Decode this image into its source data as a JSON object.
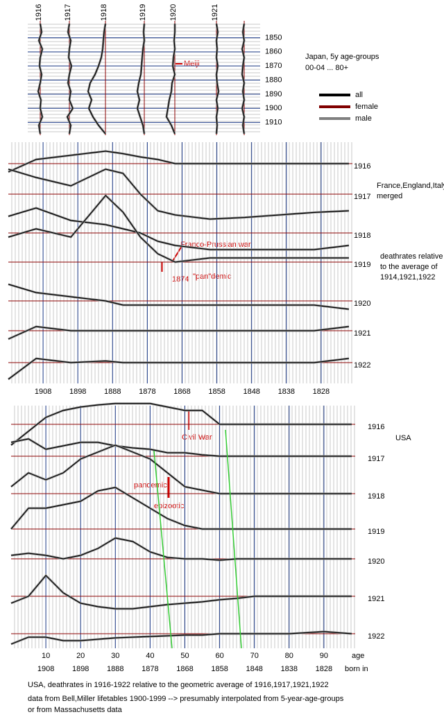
{
  "chart_data": [
    {
      "type": "line",
      "title": "Japan, 5y age-groups",
      "subtitle": "00-04 ... 80+",
      "y": [
        1840,
        1846,
        1852,
        1858,
        1864,
        1870,
        1876,
        1882,
        1888,
        1894,
        1900,
        1906,
        1912,
        1918
      ],
      "ylim": [
        1838,
        1919
      ],
      "yticks": [
        1850,
        1860,
        1870,
        1880,
        1890,
        1900,
        1910
      ],
      "columns": [
        {
          "name": "1916",
          "values": [
            1.0,
            1.02,
            0.98,
            1.03,
            1.0,
            0.99,
            1.02,
            1.0,
            0.97,
            1.01,
            1.0,
            1.03,
            0.98,
            1.0
          ]
        },
        {
          "name": "1917",
          "values": [
            1.0,
            0.98,
            1.02,
            1.0,
            0.99,
            1.03,
            1.0,
            0.98,
            1.02,
            1.0,
            1.05,
            0.97,
            1.02,
            1.0
          ]
        },
        {
          "name": "1918",
          "values": [
            1.0,
            0.98,
            0.97,
            0.96,
            0.94,
            0.9,
            0.85,
            0.78,
            0.75,
            0.8,
            0.76,
            0.82,
            0.9,
            1.0
          ]
        },
        {
          "name": "1919",
          "values": [
            1.0,
            0.99,
            1.0,
            0.98,
            0.97,
            0.96,
            0.95,
            0.92,
            0.9,
            0.93,
            0.9,
            0.94,
            0.98,
            1.0
          ]
        },
        {
          "name": "1920",
          "values": [
            1.0,
            1.0,
            0.99,
            1.0,
            0.98,
            0.97,
            1.0,
            0.96,
            0.95,
            0.92,
            0.9,
            0.88,
            0.95,
            1.0
          ]
        },
        {
          "name": "1921",
          "values": [
            1.0,
            1.02,
            1.0,
            1.01,
            1.0,
            1.02,
            1.0,
            1.01,
            1.03,
            1.0,
            1.02,
            1.0,
            1.01,
            1.0
          ]
        },
        {
          "name": null,
          "values": [
            1.0,
            0.98,
            1.0,
            0.97,
            1.0,
            0.98,
            0.97,
            1.0,
            0.98,
            1.0,
            0.97,
            1.0,
            0.98,
            1.0
          ]
        }
      ],
      "legend": [
        {
          "name": "all",
          "color": "#000000"
        },
        {
          "name": "female",
          "color": "#800000"
        },
        {
          "name": "male",
          "color": "#808080"
        }
      ],
      "annotations": [
        "Meiji"
      ]
    },
    {
      "type": "line",
      "title": "France,England,Italy",
      "subtitle": "merged",
      "note": [
        "deathrates relative",
        "to the average of",
        "1914,1921,1922"
      ],
      "x": [
        1918,
        1910,
        1900,
        1890,
        1885,
        1880,
        1875,
        1870,
        1860,
        1850,
        1840,
        1830,
        1820
      ],
      "xlim": [
        1918,
        1819
      ],
      "xticks": [
        1908,
        1898,
        1888,
        1878,
        1868,
        1858,
        1848,
        1838,
        1828
      ],
      "series": [
        {
          "name": "1916",
          "values": [
            0.9,
            1.05,
            1.1,
            1.15,
            1.12,
            1.08,
            1.05,
            1.0,
            1.0,
            1.0,
            1.0,
            1.0,
            1.0
          ]
        },
        {
          "name": "1917",
          "values": [
            1.3,
            1.2,
            1.1,
            1.3,
            1.25,
            1.0,
            0.8,
            0.75,
            0.7,
            0.72,
            0.75,
            0.78,
            0.8
          ]
        },
        {
          "name": "1918",
          "values": [
            1.2,
            1.3,
            1.15,
            1.1,
            1.05,
            1.0,
            0.9,
            0.85,
            0.8,
            0.8,
            0.8,
            0.8,
            0.85
          ]
        },
        {
          "name": "1919",
          "values": [
            1.3,
            1.4,
            1.3,
            1.8,
            1.6,
            1.3,
            1.1,
            1.0,
            1.05,
            1.05,
            1.05,
            1.05,
            1.05
          ]
        },
        {
          "name": "1920",
          "values": [
            1.2,
            1.1,
            1.05,
            1.0,
            0.95,
            0.95,
            0.95,
            0.95,
            0.95,
            0.95,
            0.95,
            0.95,
            0.9
          ]
        },
        {
          "name": "1921",
          "values": [
            0.9,
            1.05,
            1.0,
            1.0,
            1.0,
            1.0,
            1.0,
            1.0,
            1.0,
            1.0,
            1.0,
            1.0,
            1.05
          ]
        },
        {
          "name": "1922",
          "values": [
            0.8,
            1.05,
            1.0,
            1.02,
            1.0,
            1.0,
            1.0,
            1.0,
            1.0,
            1.0,
            1.0,
            1.0,
            1.05
          ]
        }
      ],
      "annotations": [
        "Franco-Prussian war",
        "1874",
        "\"pan\"demic"
      ]
    },
    {
      "type": "line",
      "title": "USA",
      "x": [
        0,
        5,
        10,
        15,
        20,
        25,
        30,
        35,
        40,
        45,
        50,
        55,
        60,
        65,
        70,
        80,
        90,
        98
      ],
      "xlim": [
        0,
        99
      ],
      "xticks": [
        10,
        20,
        30,
        40,
        50,
        60,
        70,
        80,
        90
      ],
      "xlabel": "age",
      "x2label": "born in",
      "x2ticks": [
        {
          "value": 10,
          "label": "1908"
        },
        {
          "value": 20,
          "label": "1898"
        },
        {
          "value": 30,
          "label": "1888"
        },
        {
          "value": 40,
          "label": "1878"
        },
        {
          "value": 50,
          "label": "1868"
        },
        {
          "value": 60,
          "label": "1858"
        },
        {
          "value": 70,
          "label": "1848"
        },
        {
          "value": 80,
          "label": "1838"
        },
        {
          "value": 90,
          "label": "1828"
        }
      ],
      "series": [
        {
          "name": "1916",
          "values": [
            0.7,
            0.9,
            1.1,
            1.2,
            1.25,
            1.28,
            1.3,
            1.3,
            1.3,
            1.25,
            1.2,
            1.2,
            1.0,
            1.0,
            1.0,
            1.0,
            1.0,
            1.0
          ]
        },
        {
          "name": "1917",
          "values": [
            1.2,
            1.25,
            1.1,
            1.15,
            1.2,
            1.2,
            1.15,
            1.12,
            1.1,
            1.05,
            1.05,
            1.02,
            1.0,
            1.0,
            1.0,
            1.0,
            1.0,
            1.0
          ]
        },
        {
          "name": "1918",
          "values": [
            1.1,
            1.3,
            1.2,
            1.3,
            1.5,
            1.6,
            1.7,
            1.6,
            1.5,
            1.3,
            1.1,
            1.05,
            1.0,
            1.0,
            1.0,
            1.0,
            1.0,
            1.0
          ]
        },
        {
          "name": "1919",
          "values": [
            1.0,
            1.3,
            1.3,
            1.35,
            1.4,
            1.55,
            1.6,
            1.45,
            1.3,
            1.15,
            1.05,
            1.0,
            1.0,
            1.0,
            1.0,
            1.0,
            1.0,
            1.0
          ]
        },
        {
          "name": "1920",
          "values": [
            1.05,
            1.08,
            1.05,
            1.0,
            1.05,
            1.15,
            1.3,
            1.25,
            1.1,
            1.02,
            1.0,
            1.0,
            0.98,
            1.0,
            1.0,
            1.0,
            1.0,
            1.0
          ]
        },
        {
          "name": "1921",
          "values": [
            0.9,
            1.0,
            1.3,
            1.05,
            0.9,
            0.85,
            0.82,
            0.82,
            0.85,
            0.88,
            0.9,
            0.92,
            0.95,
            0.97,
            1.0,
            1.0,
            1.0,
            1.0
          ]
        },
        {
          "name": "1922",
          "values": [
            0.85,
            0.95,
            0.95,
            0.9,
            0.9,
            0.92,
            0.94,
            0.95,
            0.96,
            0.97,
            0.98,
            0.98,
            1.0,
            1.0,
            1.0,
            1.0,
            1.03,
            1.0
          ]
        }
      ],
      "annotations": [
        "Civil War",
        "pandemic",
        "epizootic"
      ],
      "caption": [
        "USA, deathrates in 1916-1922 relative to the geometric average of 1916,1917,1921,1922",
        "data from Bell,Miller lifetables 1900-1999 --> presumably interpolated from 5-year-age-groups",
        "or from Massachusetts data"
      ]
    }
  ]
}
